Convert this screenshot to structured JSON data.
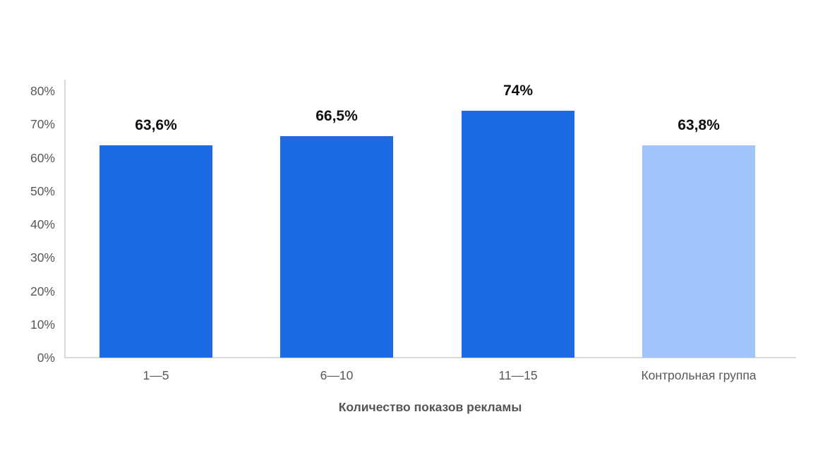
{
  "chart_data": {
    "type": "bar",
    "categories": [
      "1—5",
      "6—10",
      "11—15",
      "Контрольная группа"
    ],
    "values": [
      63.6,
      66.5,
      74,
      63.8
    ],
    "value_labels": [
      "63,6%",
      "66,5%",
      "74%",
      "63,8%"
    ],
    "bar_colors": [
      "#1d6be4",
      "#1d6be4",
      "#1d6be4",
      "#a1c4fa"
    ],
    "title": "",
    "xlabel": "Количество показов рекламы",
    "ylabel": "",
    "ylim": [
      0,
      80
    ],
    "yticks": [
      {
        "value": 0,
        "label": "0%"
      },
      {
        "value": 10,
        "label": "10%"
      },
      {
        "value": 20,
        "label": "20%"
      },
      {
        "value": 30,
        "label": "30%"
      },
      {
        "value": 40,
        "label": "40%"
      },
      {
        "value": 50,
        "label": "50%"
      },
      {
        "value": 60,
        "label": "60%"
      },
      {
        "value": 70,
        "label": "70%"
      },
      {
        "value": 80,
        "label": "80%"
      }
    ],
    "grid": false,
    "legend": false,
    "axis_color": "#dadada",
    "tick_text_color": "#58585a",
    "value_label_color": "#0e0f11"
  }
}
